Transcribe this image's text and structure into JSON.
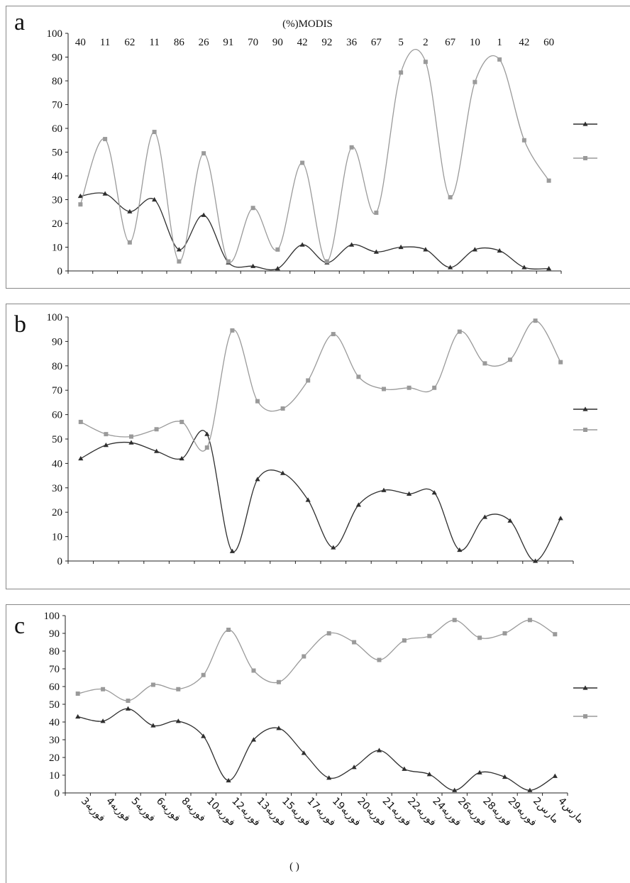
{
  "chart_data": [
    {
      "type": "line",
      "panel_label": "a",
      "top_axis_title": "(%)MODIS",
      "top_tick_labels": [
        "40",
        "11",
        "62",
        "11",
        "86",
        "26",
        "91",
        "70",
        "90",
        "42",
        "92",
        "36",
        "67",
        "5",
        "2",
        "67",
        "10",
        "1",
        "42",
        "60"
      ],
      "ylim": [
        0,
        100
      ],
      "y_ticks": [
        "0",
        "10",
        "20",
        "30",
        "40",
        "50",
        "60",
        "70",
        "80",
        "90",
        "100"
      ],
      "grid": false,
      "legend": "right",
      "series": [
        {
          "color": "#2e2e2e",
          "marker": "triangle",
          "values": [
            31.5,
            32.5,
            25,
            30,
            9,
            23.5,
            3.5,
            2,
            1,
            11,
            3.5,
            11,
            8,
            10,
            9,
            1.5,
            9,
            8.5,
            1.5,
            1
          ]
        },
        {
          "color": "#9a9a9a",
          "marker": "square",
          "values": [
            28,
            55.5,
            12,
            58.5,
            4,
            49.5,
            4,
            26.5,
            9,
            45.5,
            4,
            52,
            24.5,
            83.5,
            88,
            31,
            79.5,
            89,
            55,
            38
          ]
        }
      ]
    },
    {
      "type": "line",
      "panel_label": "b",
      "ylim": [
        0,
        100
      ],
      "y_ticks": [
        "0",
        "10",
        "20",
        "30",
        "40",
        "50",
        "60",
        "70",
        "80",
        "90",
        "100"
      ],
      "grid": false,
      "legend": "right",
      "series": [
        {
          "color": "#2e2e2e",
          "marker": "triangle",
          "values": [
            42,
            47.5,
            48.5,
            45,
            42,
            52,
            4,
            33.5,
            36,
            25,
            5.5,
            23,
            29,
            27.5,
            28,
            4.5,
            18,
            16.5,
            0,
            17.5
          ]
        },
        {
          "color": "#9a9a9a",
          "marker": "square",
          "values": [
            57,
            52,
            51,
            54,
            57,
            46.5,
            94.5,
            65.5,
            62.5,
            74,
            93,
            75.5,
            70.5,
            71,
            71,
            94,
            81,
            82.5,
            98.5,
            81.5
          ]
        }
      ]
    },
    {
      "type": "line",
      "panel_label": "c",
      "categories": [
        "3فوریه",
        "4فوریه",
        "5فوریه",
        "6فوریه",
        "8فوریه",
        "10فوریه",
        "12فوریه",
        "13فوریه",
        "15فوریه",
        "17فوریه",
        "19فوریه",
        "20فوریه",
        "21فوریه",
        "22فوریه",
        "24فوریه",
        "26فوریه",
        "28فوریه",
        "29فوریه",
        "2مارس",
        "4مارس"
      ],
      "xlabel": "(    )",
      "ylim": [
        0,
        100
      ],
      "y_ticks": [
        "0",
        "10",
        "20",
        "30",
        "40",
        "50",
        "60",
        "70",
        "80",
        "90",
        "100"
      ],
      "grid": false,
      "legend": "right",
      "series": [
        {
          "color": "#2e2e2e",
          "marker": "triangle",
          "values": [
            43,
            40.5,
            47.5,
            38,
            40.5,
            32,
            7,
            30,
            36.5,
            22.5,
            8.5,
            14.5,
            24,
            13.5,
            10.5,
            1.5,
            11.5,
            9,
            1.5,
            9.5
          ]
        },
        {
          "color": "#9a9a9a",
          "marker": "square",
          "values": [
            56,
            58.5,
            52,
            61,
            58.5,
            66.5,
            92,
            69,
            62.5,
            77,
            90,
            85,
            75,
            86,
            88.5,
            97.5,
            87.5,
            90,
            97.5,
            89.5
          ]
        }
      ]
    }
  ]
}
